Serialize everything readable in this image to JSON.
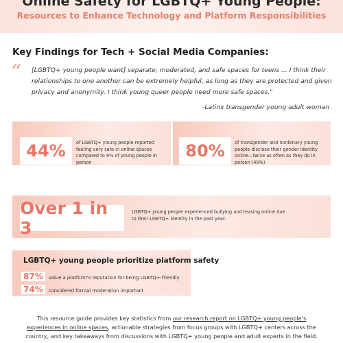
{
  "header": {
    "title": "Online Safety for LGBTQ+ Young People:",
    "subtitle": "Resources to Enhance Technology and Platform Responsibilities"
  },
  "section_title": "Key Findings for Tech + Social Media Companies:",
  "quote": {
    "text": "[LGBTQ+ young people want] separate, moderated, and safe spaces for teens ... I think their relationships to one another can be extremely helpful, as long as they are protected and given privacy and anonymity. I think young queer people need more safe spaces.\"",
    "attribution": "-Latinx transgender young adult woman"
  },
  "stats": [
    {
      "value": "44%",
      "text": "of LGBTQ+ young people reported feeling very safe in online spaces compared to 9% of young people in person"
    },
    {
      "value": "80%",
      "text": "of transgender and nonbinary young people disclose their gender identity online—twice as often as they do in person (40%)"
    },
    {
      "value": "Over 1 in 3",
      "text": "LGBTQ+ young people experienced bullying and teasing online due to their LGBTQ+ identity in the past year."
    }
  ],
  "priority": {
    "title": "LGBTQ+ young people prioritize platform safety",
    "items": [
      {
        "value": "87%",
        "text": "value a platform's reputation for being LGBTQ+-friendly"
      },
      {
        "value": "74%",
        "text": "considered formal moderation important"
      }
    ]
  },
  "footer": {
    "before": "This resource guide provides key statistics from ",
    "link": "our research report on LGBTQ+ young people's experiences in online spaces",
    "after": ", actionable strategies from focus groups with LGBTQ+ centers across the country, and key takeaways from discussions with LGBTQ+ young people and adult experts in the field."
  }
}
